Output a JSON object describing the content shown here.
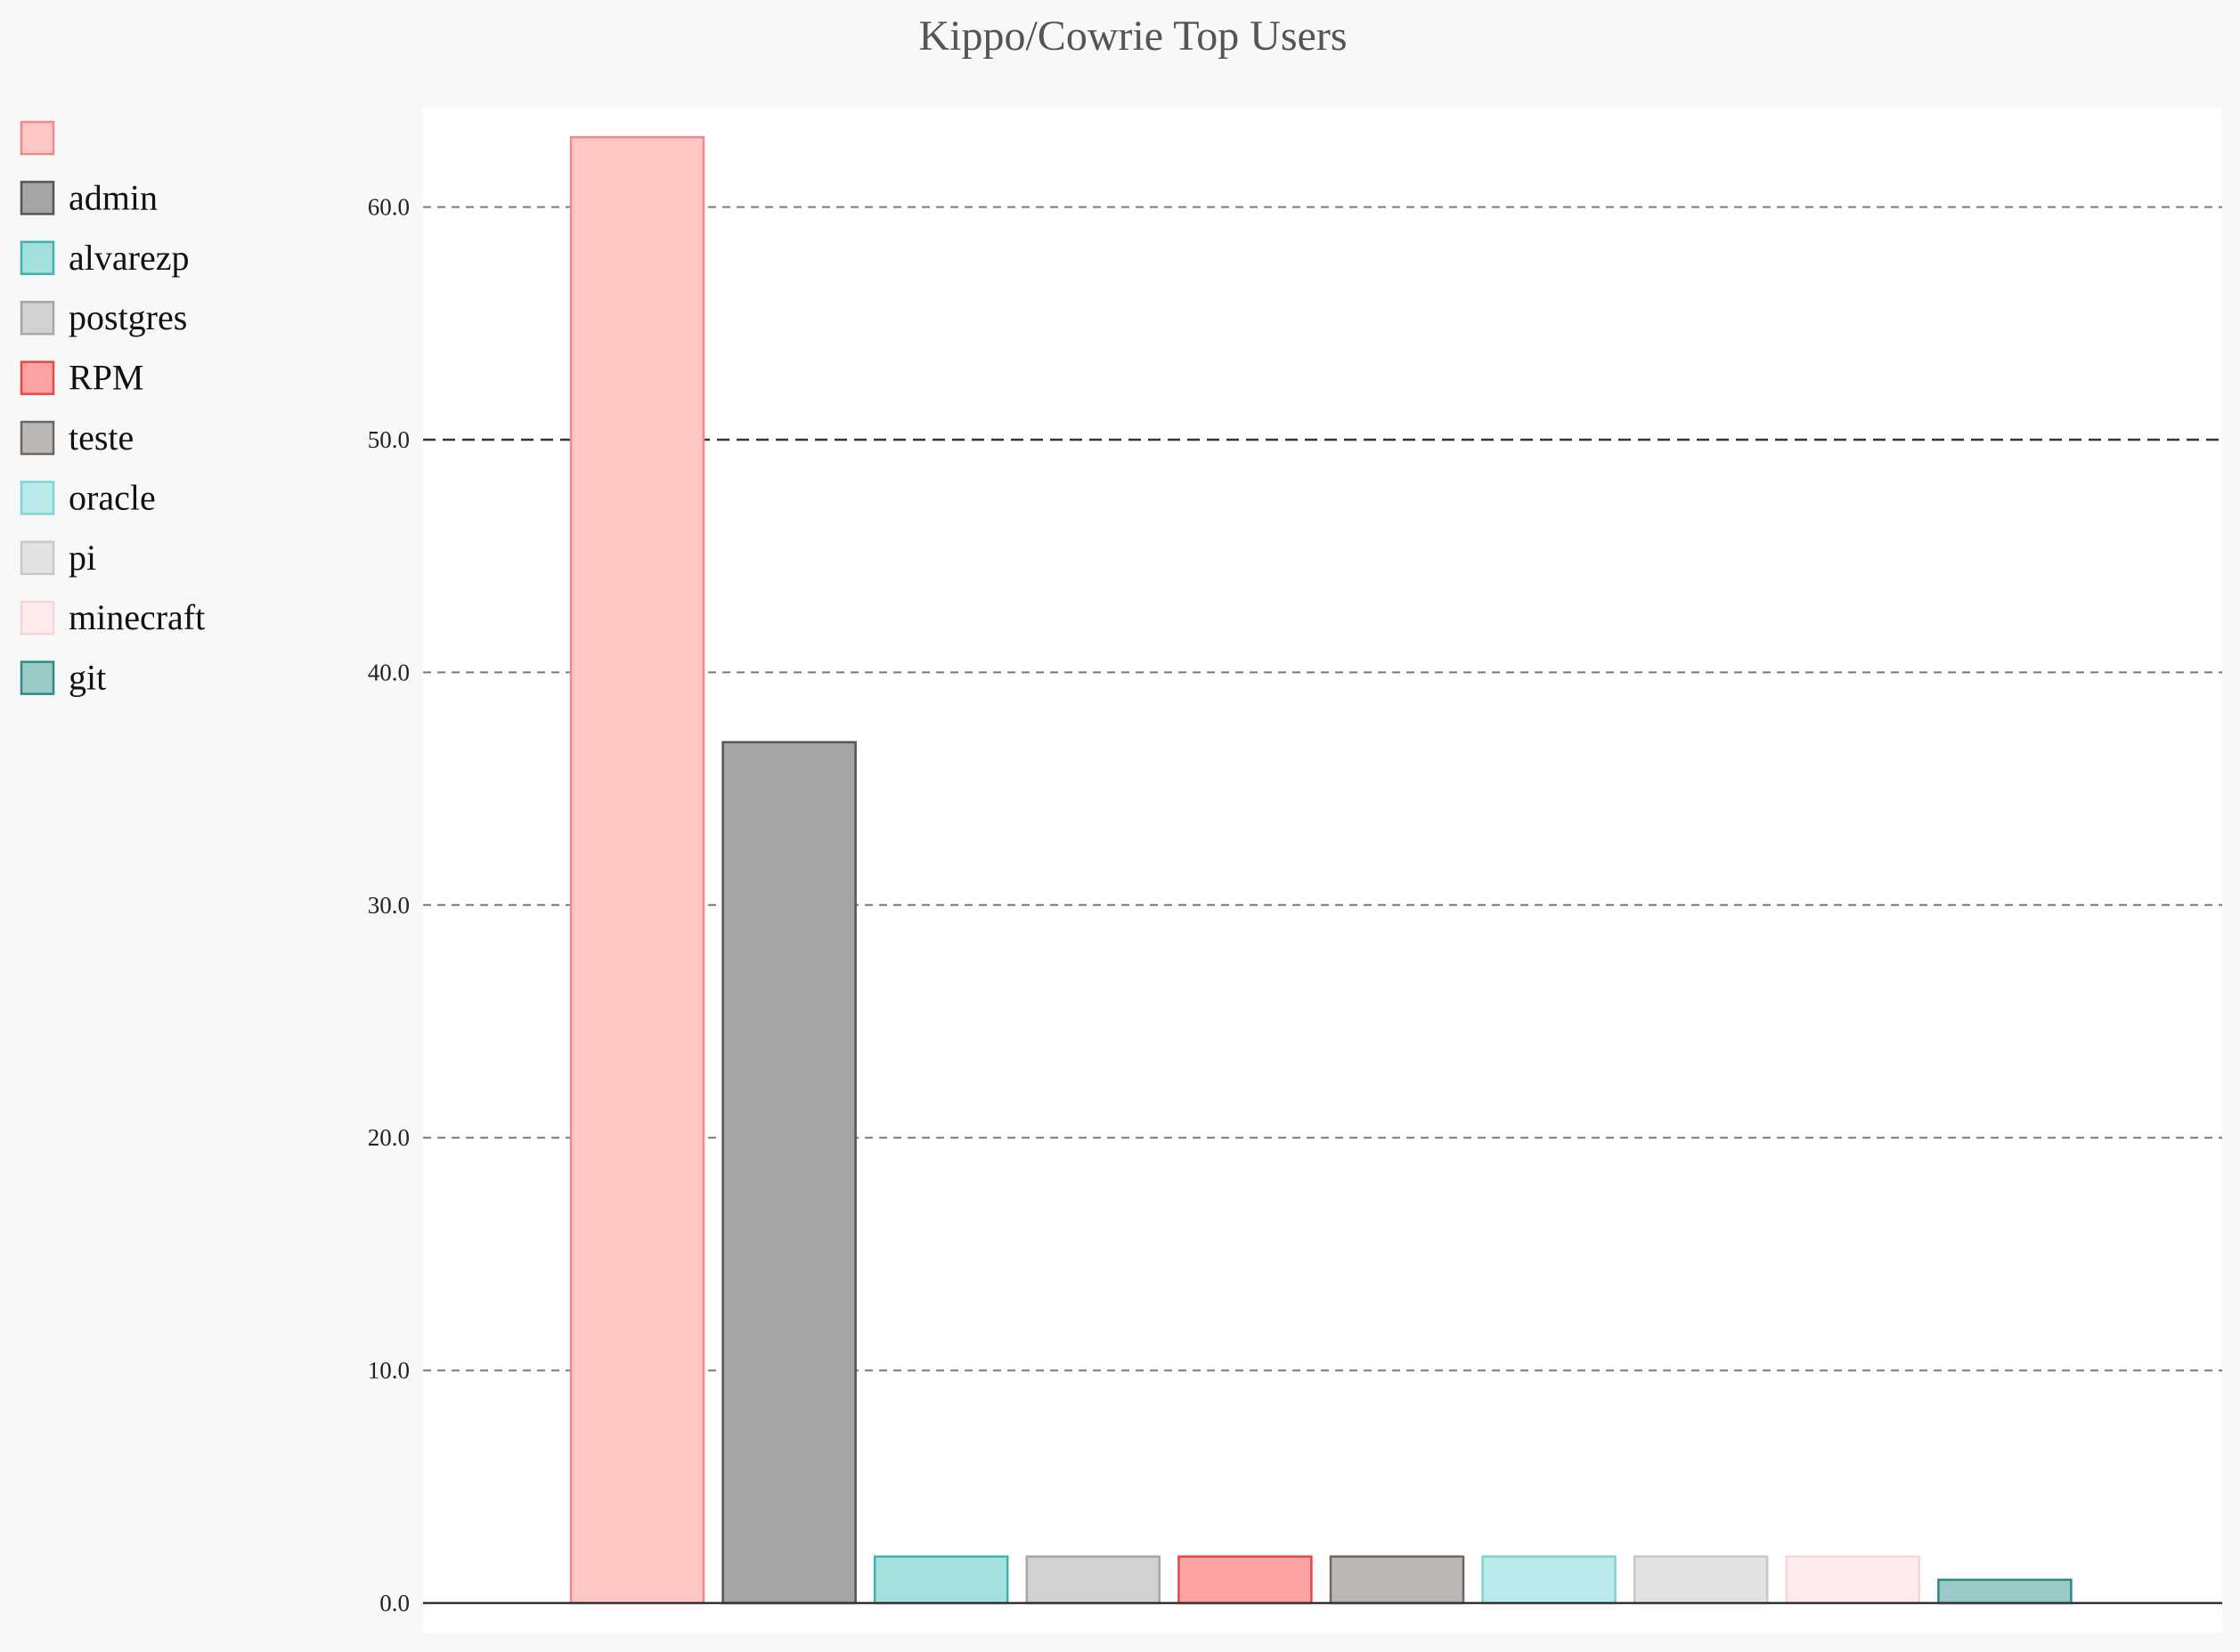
{
  "chart_data": {
    "type": "bar",
    "title": "Kippo/Cowrie Top Users",
    "xlabel": "",
    "ylabel": "",
    "ylim": [
      0,
      65
    ],
    "yticks": [
      0,
      10,
      20,
      30,
      40,
      50,
      60
    ],
    "ytick_labels": [
      "0.0",
      "10.0",
      "20.0",
      "30.0",
      "40.0",
      "50.0",
      "60.0"
    ],
    "grid": "horizontal dashed",
    "legend_position": "left",
    "series": [
      {
        "name": "",
        "value": 63,
        "fill": "#ffc6c6",
        "stroke": "#f08a8a"
      },
      {
        "name": "admin",
        "value": 37,
        "fill": "#a5a5a3",
        "stroke": "#555555"
      },
      {
        "name": "alvarezp",
        "value": 2,
        "fill": "#a3e0dd",
        "stroke": "#3cb3ab"
      },
      {
        "name": "postgres",
        "value": 2,
        "fill": "#d0d2cf",
        "stroke": "#a5a7a4"
      },
      {
        "name": "RPM",
        "value": 2,
        "fill": "#fda3a3",
        "stroke": "#e04a4a"
      },
      {
        "name": "teste",
        "value": 2,
        "fill": "#bbb7b4",
        "stroke": "#6b6764"
      },
      {
        "name": "oracle",
        "value": 2,
        "fill": "#bbeaea",
        "stroke": "#7fd3d0"
      },
      {
        "name": "pi",
        "value": 2,
        "fill": "#e2e2e2",
        "stroke": "#c8c8c8"
      },
      {
        "name": "minecraft",
        "value": 2,
        "fill": "#ffebeb",
        "stroke": "#f8d5d5"
      },
      {
        "name": "git",
        "value": 1,
        "fill": "#9bcbc8",
        "stroke": "#2c8a85"
      }
    ]
  }
}
